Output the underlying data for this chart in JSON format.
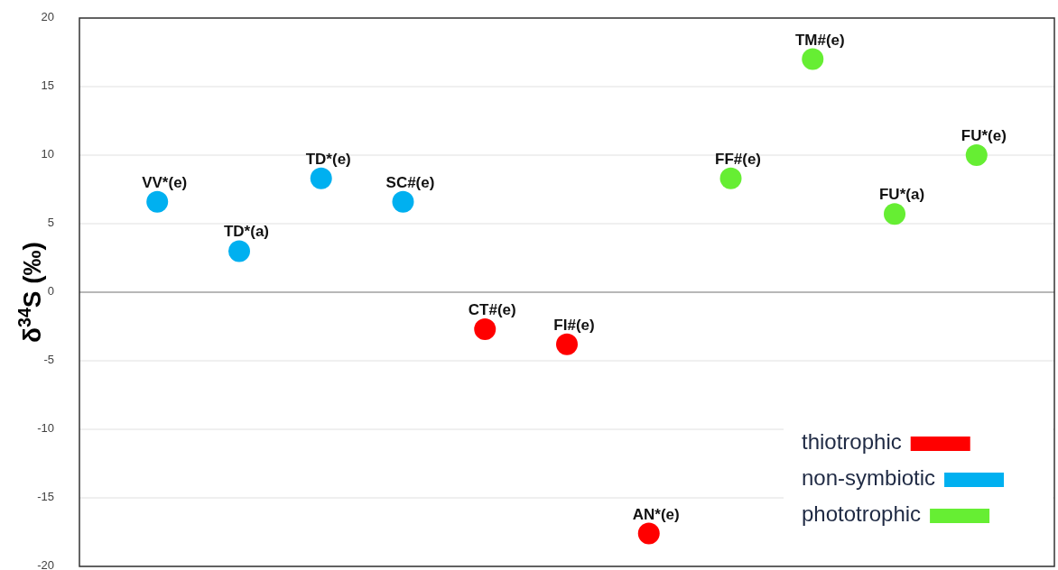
{
  "chart_data": {
    "type": "scatter",
    "ylabel": "δ$^{34}$S (‰)",
    "categories": [
      null,
      null,
      null,
      null,
      null,
      null,
      null,
      null,
      null,
      null,
      null
    ],
    "series": [
      {
        "name": "thiotrophic",
        "color": "#ff0000",
        "values": [
          null,
          null,
          null,
          null,
          -2.7,
          -3.8,
          -17.6,
          null,
          null,
          null,
          null
        ]
      },
      {
        "name": "non-symbiotic",
        "color": "#00b0f0",
        "values": [
          6.6,
          3.0,
          8.3,
          6.6,
          null,
          null,
          null,
          null,
          null,
          null,
          null
        ]
      },
      {
        "name": "phototrophic",
        "color": "#66ee33",
        "values": [
          null,
          null,
          null,
          null,
          null,
          null,
          null,
          8.3,
          17.0,
          5.7,
          10.0
        ]
      }
    ],
    "annotations": [
      {
        "text": "VV*(e)",
        "y": 6.6
      },
      {
        "text": "TD*(a)",
        "y": 3.0
      },
      {
        "text": "TD*(e)",
        "y": 8.3
      },
      {
        "text": "SC#(e)",
        "y": 6.6
      },
      {
        "text": "CT#(e)",
        "y": -2.7
      },
      {
        "text": "FI#(e)",
        "y": -3.8
      },
      {
        "text": "AN*(e)",
        "y": -17.6
      },
      {
        "text": "FF#(e)",
        "y": 8.3
      },
      {
        "text": "TM#(e)",
        "y": 17.0
      },
      {
        "text": "FU*(a)",
        "y": 5.7
      },
      {
        "text": "FU*(e)",
        "y": 10.0
      }
    ],
    "ylim": [
      -20,
      20
    ],
    "yticks": [
      -20,
      -15,
      -10,
      -5,
      0,
      5,
      10,
      15,
      20
    ],
    "grid": "y",
    "legend": "bottom right",
    "marker": "circle"
  }
}
